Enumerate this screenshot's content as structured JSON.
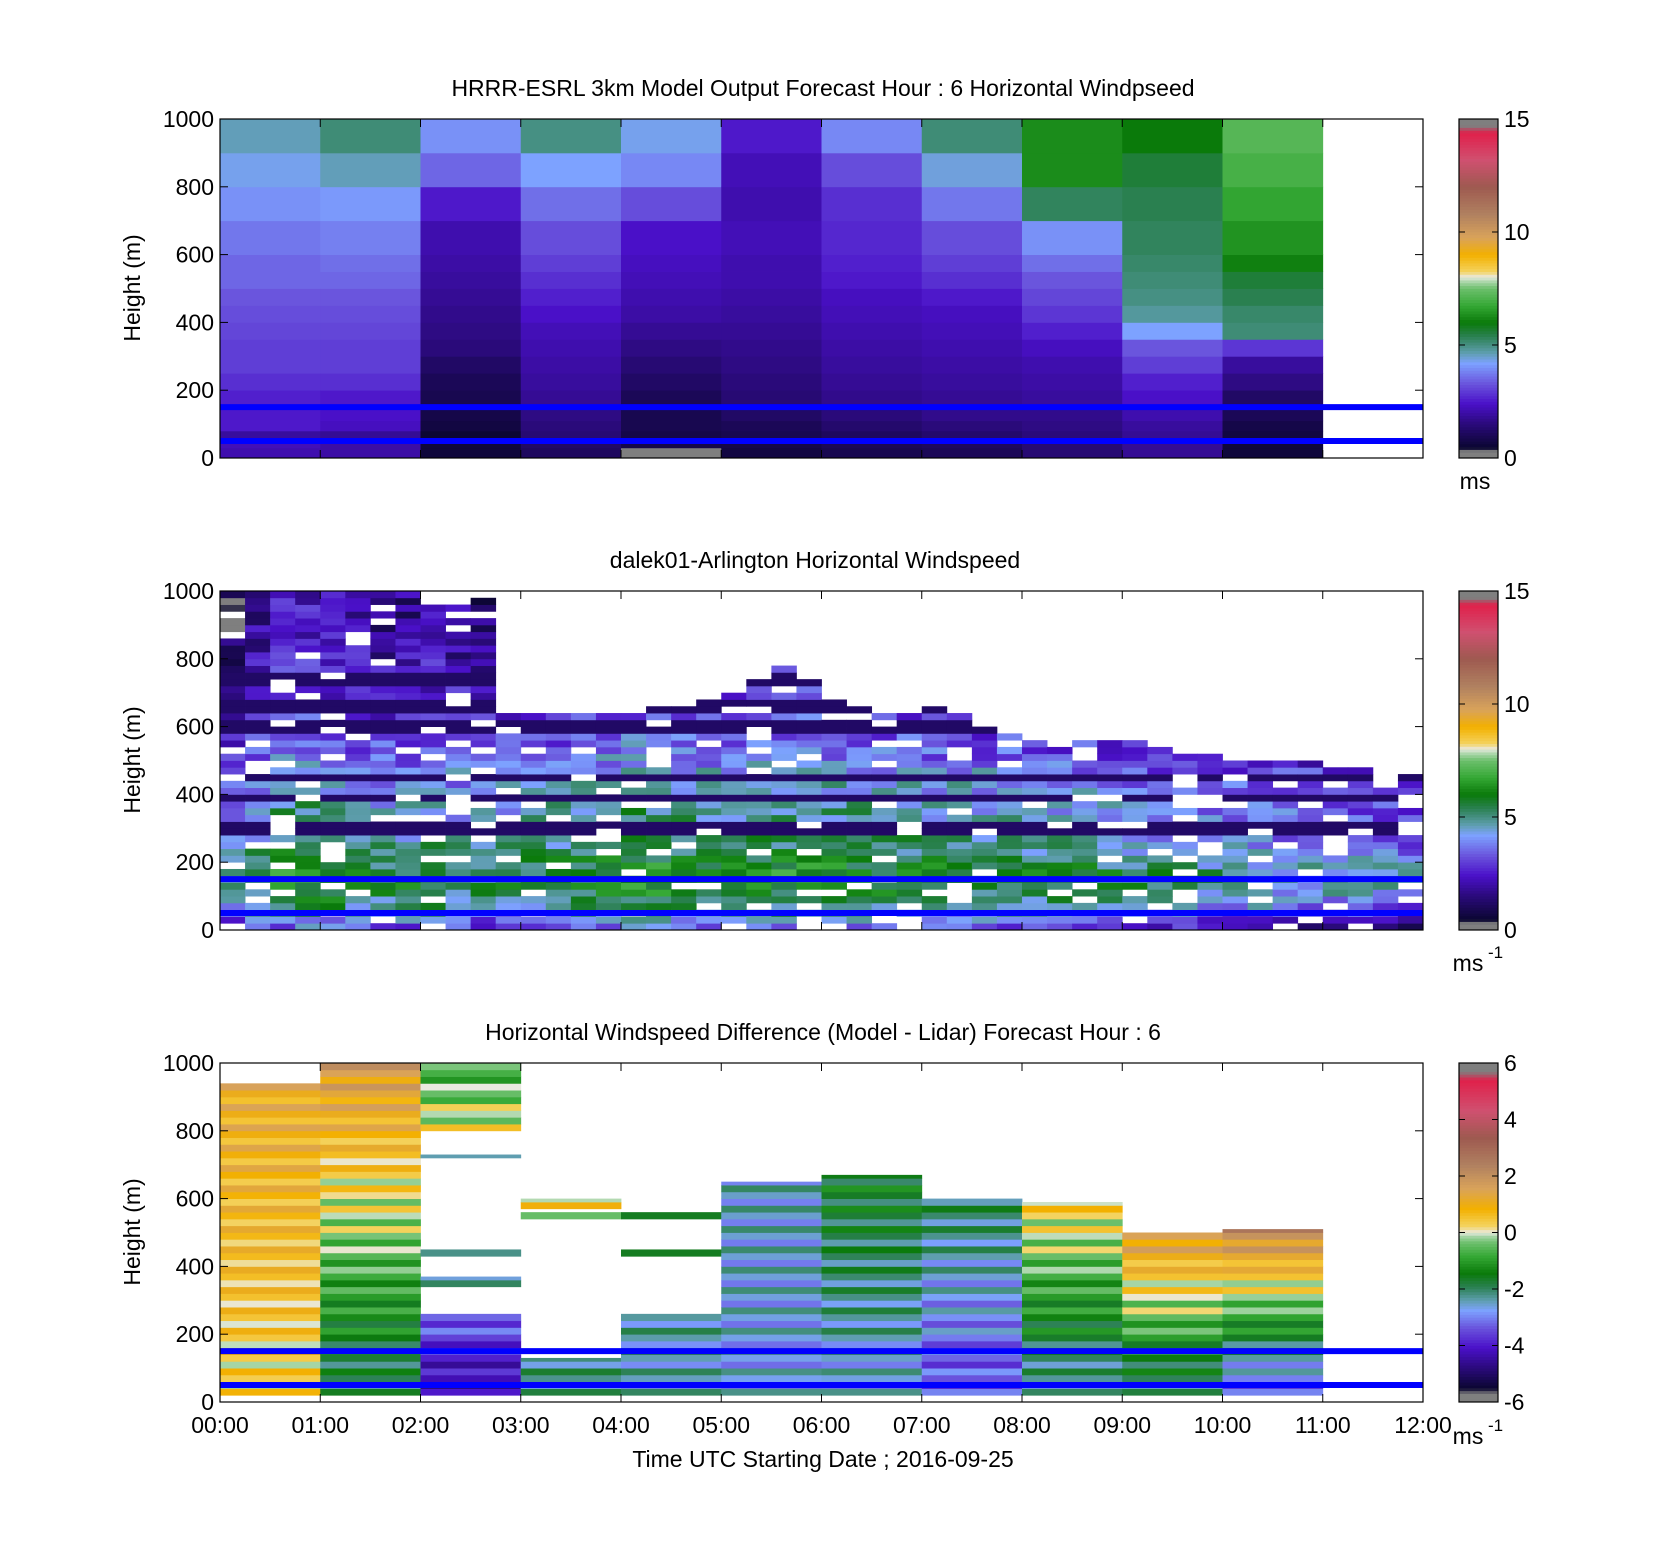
{
  "figure": {
    "background": "#ffffff",
    "overlay_line_color": "#0000ff",
    "overlay_lines_y": [
      50,
      150
    ]
  },
  "chart_data": [
    {
      "type": "heatmap",
      "id": "model",
      "title": "HRRR-ESRL 3km Model Output   Forecast Hour : 6 Horizontal Windpseed",
      "xlabel": "",
      "ylabel": "Height (m)",
      "xlim": [
        0,
        12
      ],
      "ylim": [
        0,
        1000
      ],
      "yticks": [
        0,
        200,
        400,
        600,
        800,
        1000
      ],
      "x_tick_labels_shown": false,
      "colorbar": {
        "ticks": [
          0,
          5,
          10,
          15
        ],
        "unit_label": "ms",
        "exponent": "",
        "range": [
          0,
          15
        ],
        "colormap": "wind"
      },
      "cell_heights_m": [
        0,
        30,
        50,
        80,
        110,
        150,
        200,
        250,
        300,
        350,
        400,
        450,
        500,
        550,
        600,
        700,
        800,
        900,
        1000
      ],
      "columns": [
        {
          "t": 0,
          "v": [
            2.1,
            2.2,
            1.9,
            2.5,
            2.5,
            2.6,
            2.8,
            3.0,
            3.0,
            3.1,
            3.2,
            3.3,
            3.5,
            3.5,
            3.7,
            4.0,
            4.3,
            4.6,
            5.2
          ]
        },
        {
          "t": 1,
          "v": [
            2.0,
            2.0,
            1.8,
            2.3,
            2.4,
            2.5,
            2.8,
            3.0,
            3.0,
            3.1,
            3.2,
            3.3,
            3.5,
            3.6,
            3.8,
            4.1,
            4.6,
            5.1,
            5.8
          ]
        },
        {
          "t": 2,
          "v": [
            0.6,
            0.6,
            0.5,
            0.7,
            0.8,
            0.9,
            1.0,
            1.2,
            1.5,
            1.6,
            1.7,
            1.8,
            1.9,
            2.0,
            2.1,
            2.5,
            3.5,
            4.0,
            4.2
          ]
        },
        {
          "t": 3,
          "v": [
            1.1,
            1.2,
            1.4,
            1.5,
            1.6,
            1.8,
            1.9,
            2.0,
            2.1,
            2.2,
            2.4,
            2.6,
            2.8,
            3.0,
            3.2,
            3.6,
            4.2,
            5.0,
            5.9
          ]
        },
        {
          "t": 4,
          "v": [
            0.3,
            0.8,
            0.8,
            0.9,
            0.9,
            1.0,
            1.2,
            1.4,
            1.6,
            1.8,
            2.0,
            2.1,
            2.2,
            2.3,
            2.4,
            3.2,
            3.9,
            4.3,
            4.8
          ]
        },
        {
          "t": 5,
          "v": [
            0.7,
            0.8,
            0.9,
            1.0,
            1.2,
            1.4,
            1.5,
            1.6,
            1.7,
            1.8,
            1.9,
            2.0,
            2.1,
            2.1,
            2.2,
            2.1,
            2.2,
            2.5,
            2.6
          ]
        },
        {
          "t": 6,
          "v": [
            0.9,
            1.0,
            1.1,
            1.3,
            1.5,
            1.7,
            1.8,
            1.9,
            2.0,
            2.1,
            2.2,
            2.3,
            2.5,
            2.6,
            2.7,
            2.8,
            3.2,
            3.9,
            4.4
          ]
        },
        {
          "t": 7,
          "v": [
            1.0,
            1.1,
            1.3,
            1.5,
            1.7,
            1.8,
            1.9,
            2.0,
            2.1,
            2.2,
            2.3,
            2.5,
            2.8,
            3.0,
            3.2,
            3.7,
            4.4,
            5.1,
            5.8
          ]
        },
        {
          "t": 8,
          "v": [
            1.4,
            1.4,
            1.5,
            1.6,
            1.7,
            1.9,
            2.0,
            2.1,
            2.3,
            2.6,
            2.9,
            3.1,
            3.3,
            3.6,
            4.0,
            5.3,
            6.3,
            6.3,
            6.3
          ]
        },
        {
          "t": 9,
          "v": [
            1.8,
            1.8,
            1.8,
            1.9,
            2.1,
            2.4,
            2.6,
            3.0,
            3.3,
            4.2,
            4.8,
            5.0,
            5.1,
            5.2,
            5.3,
            5.4,
            5.6,
            6.0,
            6.0
          ]
        },
        {
          "t": 10,
          "v": [
            0.6,
            0.6,
            0.7,
            0.8,
            1.0,
            1.2,
            1.6,
            1.9,
            2.9,
            5.1,
            5.2,
            5.4,
            5.6,
            6.1,
            6.4,
            6.7,
            7.0,
            7.2,
            7.3
          ]
        }
      ]
    },
    {
      "type": "heatmap",
      "id": "lidar",
      "title": "dalek01-Arlington  Horizontal Windspeed",
      "xlabel": "",
      "ylabel": "Height (m)",
      "xlim": [
        0,
        12
      ],
      "ylim": [
        0,
        1000
      ],
      "yticks": [
        0,
        200,
        400,
        600,
        800,
        1000
      ],
      "x_tick_labels_shown": false,
      "colorbar": {
        "ticks": [
          0,
          5,
          10,
          15
        ],
        "unit_label": "ms",
        "exponent": "-1",
        "range": [
          0,
          15
        ],
        "colormap": "wind"
      },
      "time_step_h": 0.25,
      "range_gate_m": 20,
      "coverage_top_m": [
        1000,
        1000,
        1000,
        1000,
        1000,
        1000,
        1000,
        1000,
        980,
        980,
        980,
        630,
        630,
        630,
        640,
        640,
        650,
        660,
        660,
        680,
        700,
        740,
        780,
        740,
        680,
        650,
        650,
        640,
        660,
        640,
        600,
        580,
        560,
        560,
        560,
        560,
        560,
        540,
        520,
        520,
        500,
        500,
        500,
        500,
        480,
        470,
        450,
        450
      ],
      "profile_speed_mps": [
        2.8,
        3.4,
        4.0,
        4.5,
        4.9,
        5.1,
        5.3,
        5.4,
        5.4,
        5.3,
        5.1,
        4.8,
        4.6,
        4.5,
        4.4,
        4.3,
        4.2,
        4.2,
        4.1,
        4.0,
        3.9,
        3.8,
        3.7,
        3.6,
        3.4,
        3.2,
        3.0,
        2.9,
        2.8,
        2.7,
        2.6,
        2.5,
        2.4,
        2.3,
        2.2,
        2.1,
        2.0,
        2.0,
        1.9,
        1.8,
        1.8,
        1.7,
        1.7,
        1.6,
        1.6,
        1.5,
        1.5,
        1.5,
        1.4,
        1.4
      ],
      "time_trend_mps": [
        -0.6,
        0.2,
        0.8,
        0.9,
        0.7,
        0.4,
        0.2,
        0.3,
        0.6,
        0.2,
        0.0,
        0.2,
        0.3,
        0.4,
        0.5,
        0.6,
        0.9,
        0.8,
        0.7,
        0.6,
        0.5,
        0.6,
        0.8,
        0.9,
        0.7,
        0.6,
        0.5,
        0.5,
        0.4,
        0.4,
        0.3,
        0.3,
        0.2,
        0.2,
        0.1,
        0.0,
        -0.1,
        -0.2,
        -0.3,
        -0.4,
        -0.5,
        -0.6,
        -0.7,
        -0.7,
        -0.8,
        -0.9,
        -1.0,
        -1.1
      ],
      "persistent_low_speed_heights_m": [
        730,
        650,
        590,
        440,
        380,
        290
      ],
      "variability_mps": 0.9,
      "gap_fraction": 0.12,
      "random_seed": 7
    },
    {
      "type": "heatmap",
      "id": "difference",
      "title": "Horizontal Windspeed Difference (Model - Lidar) Forecast Hour : 6",
      "xlabel": "Time UTC  Starting Date ; 2016-09-25",
      "ylabel": "Height (m)",
      "xlim": [
        0,
        12
      ],
      "ylim": [
        0,
        1000
      ],
      "yticks": [
        0,
        200,
        400,
        600,
        800,
        1000
      ],
      "xtick_labels": [
        "00:00",
        "01:00",
        "02:00",
        "03:00",
        "04:00",
        "05:00",
        "06:00",
        "07:00",
        "08:00",
        "09:00",
        "10:00",
        "11:00",
        "12:00"
      ],
      "colorbar": {
        "ticks": [
          -6,
          -4,
          -2,
          0,
          2,
          4,
          6
        ],
        "unit_label": "ms",
        "exponent": "-1",
        "range": [
          -6,
          6
        ],
        "colormap": "diff"
      },
      "columns": [
        {
          "t": 0,
          "segments": [
            [
              20,
              940,
              0.2,
              1.0
            ]
          ]
        },
        {
          "t": 1,
          "segments": [
            [
              20,
              1000,
              -2.2,
              1.6
            ]
          ]
        },
        {
          "t": 2,
          "segments": [
            [
              20,
              260,
              -4.6,
              -3.2
            ],
            [
              340,
              370,
              -2.6,
              -2.0
            ],
            [
              430,
              450,
              -2.8,
              -2.4
            ],
            [
              720,
              730,
              -3.0,
              -2.8
            ],
            [
              800,
              1000,
              0.0,
              -1.0
            ]
          ]
        },
        {
          "t": 3,
          "segments": [
            [
              20,
              130,
              -2.4,
              -2.2
            ],
            [
              540,
              560,
              -1.0,
              -1.0
            ],
            [
              570,
              600,
              0.3,
              0.3
            ]
          ]
        },
        {
          "t": 4,
          "segments": [
            [
              20,
              260,
              -2.6,
              -2.4
            ],
            [
              430,
              450,
              -2.2,
              -2.0
            ],
            [
              540,
              560,
              -2.2,
              -2.2
            ]
          ]
        },
        {
          "t": 5,
          "segments": [
            [
              20,
              650,
              -2.8,
              -2.6
            ]
          ]
        },
        {
          "t": 6,
          "segments": [
            [
              20,
              670,
              -2.8,
              -1.6
            ]
          ]
        },
        {
          "t": 7,
          "segments": [
            [
              20,
              600,
              -3.6,
              -2.0
            ]
          ]
        },
        {
          "t": 8,
          "segments": [
            [
              20,
              590,
              -2.6,
              0.4
            ]
          ]
        },
        {
          "t": 9,
          "segments": [
            [
              20,
              500,
              -2.4,
              1.6
            ]
          ]
        },
        {
          "t": 10,
          "segments": [
            [
              20,
              510,
              -3.6,
              2.2
            ]
          ]
        }
      ]
    }
  ]
}
